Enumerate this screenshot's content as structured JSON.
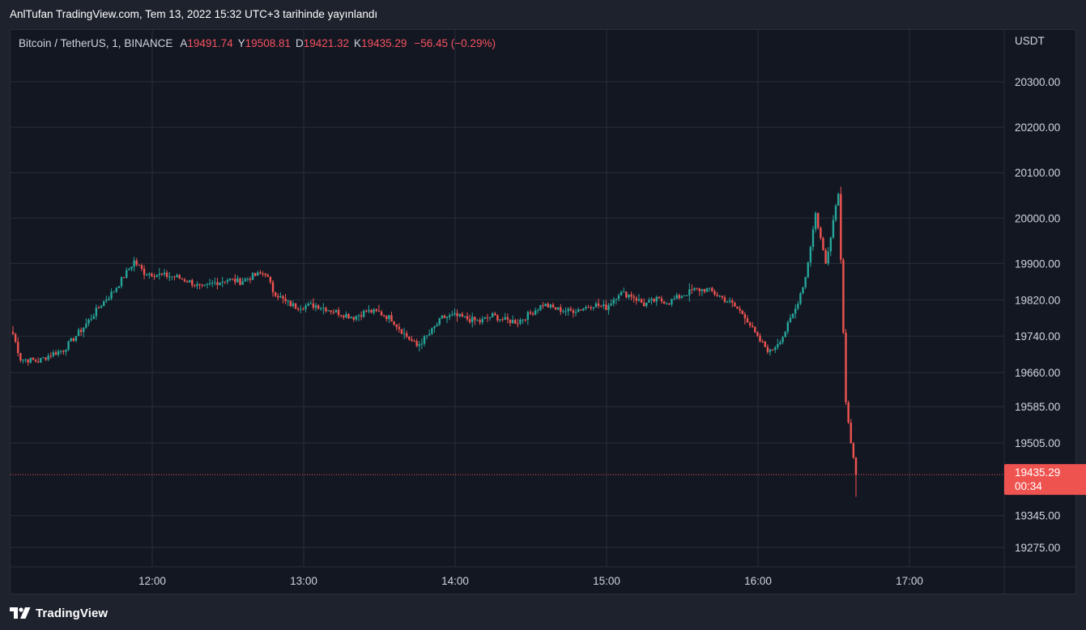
{
  "header": {
    "publish_note": "AnlTufan TradingView.com, Tem 13, 2022 15:32 UTC+3 tarihinde yayınlandı"
  },
  "legend": {
    "symbol": "Bitcoin / TetherUS, 1, BINANCE",
    "open_label": "A",
    "open": "19491.74",
    "high_label": "Y",
    "high": "19508.81",
    "low_label": "D",
    "low": "19421.32",
    "close_label": "K",
    "close": "19435.29",
    "change": "−56.45 (−0.29%)"
  },
  "colors": {
    "up": "#26a69a",
    "down": "#ef5350",
    "background": "#131722",
    "grid": "#2a2e39",
    "price_badge": "#ef5350"
  },
  "price_badge": {
    "price": "19435.29",
    "countdown": "00:34"
  },
  "footer": {
    "brand": "TradingView",
    "logo_icon": "tradingview-logo-icon"
  },
  "chart_data": {
    "type": "candlestick",
    "symbol": "Bitcoin / TetherUS, 1, BINANCE",
    "currency": "USDT",
    "y_ticks": [
      "20300.00",
      "20200.00",
      "20100.00",
      "20000.00",
      "19900.00",
      "19820.00",
      "19740.00",
      "19660.00",
      "19585.00",
      "19505.00",
      "19345.00",
      "19275.00"
    ],
    "x_ticks": [
      "12:00",
      "13:00",
      "14:00",
      "15:00",
      "16:00",
      "17:00"
    ],
    "last_price": 19435.29,
    "path": [
      [
        0,
        19745
      ],
      [
        3,
        19690
      ],
      [
        10,
        19685
      ],
      [
        15,
        19700
      ],
      [
        20,
        19710
      ],
      [
        28,
        19760
      ],
      [
        35,
        19810
      ],
      [
        40,
        19840
      ],
      [
        45,
        19880
      ],
      [
        48,
        19905
      ],
      [
        52,
        19880
      ],
      [
        58,
        19875
      ],
      [
        65,
        19870
      ],
      [
        70,
        19860
      ],
      [
        75,
        19845
      ],
      [
        80,
        19858
      ],
      [
        85,
        19865
      ],
      [
        90,
        19860
      ],
      [
        95,
        19872
      ],
      [
        100,
        19880
      ],
      [
        103,
        19840
      ],
      [
        108,
        19815
      ],
      [
        112,
        19805
      ],
      [
        120,
        19808
      ],
      [
        130,
        19790
      ],
      [
        135,
        19782
      ],
      [
        140,
        19795
      ],
      [
        145,
        19792
      ],
      [
        150,
        19778
      ],
      [
        155,
        19745
      ],
      [
        160,
        19718
      ],
      [
        165,
        19745
      ],
      [
        170,
        19780
      ],
      [
        175,
        19785
      ],
      [
        180,
        19778
      ],
      [
        185,
        19772
      ],
      [
        190,
        19785
      ],
      [
        195,
        19775
      ],
      [
        200,
        19772
      ],
      [
        205,
        19790
      ],
      [
        210,
        19810
      ],
      [
        215,
        19800
      ],
      [
        220,
        19795
      ],
      [
        225,
        19800
      ],
      [
        230,
        19810
      ],
      [
        235,
        19803
      ],
      [
        240,
        19835
      ],
      [
        245,
        19830
      ],
      [
        250,
        19810
      ],
      [
        255,
        19820
      ],
      [
        260,
        19815
      ],
      [
        265,
        19830
      ],
      [
        270,
        19842
      ],
      [
        275,
        19843
      ],
      [
        280,
        19828
      ],
      [
        285,
        19810
      ],
      [
        290,
        19785
      ],
      [
        295,
        19735
      ],
      [
        300,
        19705
      ],
      [
        305,
        19740
      ],
      [
        310,
        19800
      ],
      [
        314,
        19870
      ],
      [
        318,
        20010
      ],
      [
        322,
        19900
      ],
      [
        327,
        20060
      ],
      [
        330,
        19600
      ],
      [
        332,
        19505
      ],
      [
        334,
        19435.29
      ]
    ]
  }
}
